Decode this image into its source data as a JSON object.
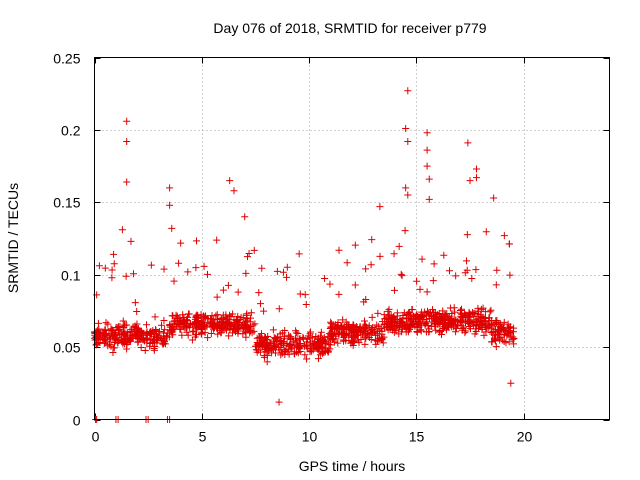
{
  "chart_data": {
    "type": "scatter",
    "title": "Day 076 of 2018, SRMTID for receiver p779",
    "xlabel": "GPS time / hours",
    "ylabel": "SRMTID / TECUs",
    "xlim": [
      0,
      24
    ],
    "ylim": [
      0,
      0.25
    ],
    "x_ticks": [
      0,
      5,
      10,
      15,
      20
    ],
    "x_tick_labels": [
      "0",
      "5",
      "10",
      "15",
      "20"
    ],
    "y_ticks": [
      0,
      0.05,
      0.1,
      0.15,
      0.2,
      0.25
    ],
    "y_tick_labels": [
      "0",
      "0.05",
      "0.1",
      "0.15",
      "0.2",
      "0.25"
    ],
    "grid": true,
    "marker": "+",
    "color": "#e00000",
    "series": [
      {
        "name": "SRMTID",
        "bulk": {
          "x_range": [
            0,
            19.6
          ],
          "typical_range": [
            0.03,
            0.09
          ],
          "mean": 0.06,
          "count": 1400
        },
        "zero_points": [
          0.05,
          0.1,
          1.0,
          1.1,
          2.4,
          2.5,
          3.4,
          3.5
        ],
        "notable_points": [
          {
            "x": 1.5,
            "y": 0.206
          },
          {
            "x": 1.5,
            "y": 0.192
          },
          {
            "x": 1.5,
            "y": 0.164
          },
          {
            "x": 1.3,
            "y": 0.131
          },
          {
            "x": 1.7,
            "y": 0.123
          },
          {
            "x": 3.5,
            "y": 0.16
          },
          {
            "x": 3.5,
            "y": 0.148
          },
          {
            "x": 3.6,
            "y": 0.132
          },
          {
            "x": 6.3,
            "y": 0.165
          },
          {
            "x": 6.5,
            "y": 0.158
          },
          {
            "x": 7.0,
            "y": 0.14
          },
          {
            "x": 13.3,
            "y": 0.147
          },
          {
            "x": 14.6,
            "y": 0.227
          },
          {
            "x": 14.5,
            "y": 0.201
          },
          {
            "x": 14.6,
            "y": 0.192
          },
          {
            "x": 14.5,
            "y": 0.16
          },
          {
            "x": 14.6,
            "y": 0.155
          },
          {
            "x": 15.5,
            "y": 0.198
          },
          {
            "x": 15.5,
            "y": 0.186
          },
          {
            "x": 15.5,
            "y": 0.175
          },
          {
            "x": 15.6,
            "y": 0.166
          },
          {
            "x": 15.6,
            "y": 0.152
          },
          {
            "x": 17.4,
            "y": 0.191
          },
          {
            "x": 17.5,
            "y": 0.165
          },
          {
            "x": 17.8,
            "y": 0.173
          },
          {
            "x": 17.8,
            "y": 0.167
          },
          {
            "x": 18.6,
            "y": 0.153
          },
          {
            "x": 8.6,
            "y": 0.012
          },
          {
            "x": 19.1,
            "y": 0.127
          },
          {
            "x": 19.4,
            "y": 0.025
          }
        ]
      }
    ]
  }
}
